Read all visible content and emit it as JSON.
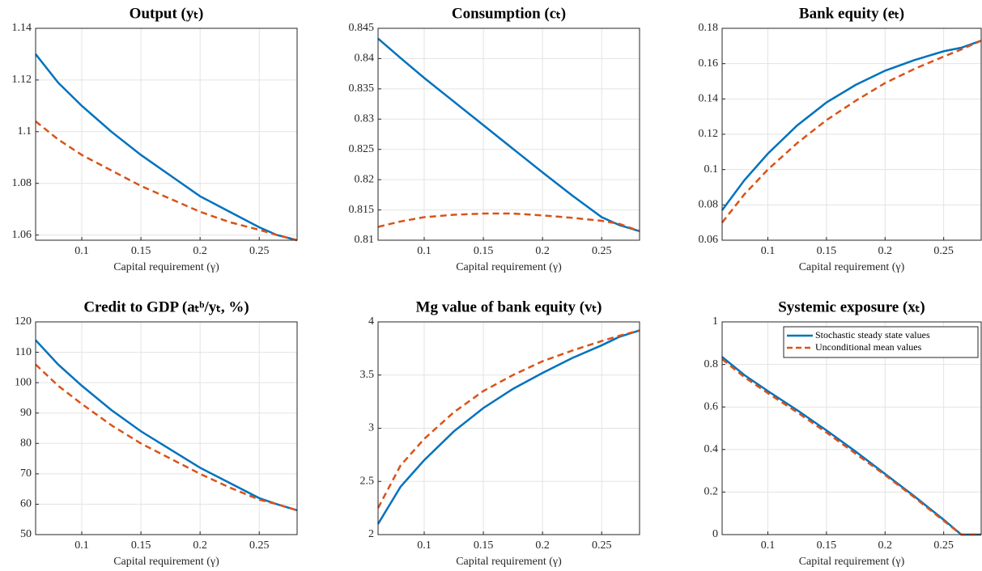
{
  "chart_data": [
    {
      "type": "line",
      "title": "Output (yₜ)",
      "xlabel": "Capital requirement (γ)",
      "x": [
        0.061,
        0.08,
        0.1,
        0.125,
        0.15,
        0.175,
        0.2,
        0.225,
        0.25,
        0.265,
        0.282
      ],
      "xlim": [
        0.061,
        0.282
      ],
      "xticks": [
        0.1,
        0.15,
        0.2,
        0.25
      ],
      "ylim": [
        1.058,
        1.14
      ],
      "yticks": [
        1.06,
        1.08,
        1.1,
        1.12,
        1.14
      ],
      "grid": true,
      "series": [
        {
          "color": "#0072bd",
          "dash": "solid",
          "values": [
            1.13,
            1.119,
            1.11,
            1.1,
            1.091,
            1.083,
            1.075,
            1.069,
            1.063,
            1.06,
            1.058
          ]
        },
        {
          "color": "#d95319",
          "dash": "dashed",
          "values": [
            1.104,
            1.097,
            1.091,
            1.085,
            1.079,
            1.074,
            1.069,
            1.065,
            1.062,
            1.06,
            1.058
          ]
        }
      ]
    },
    {
      "type": "line",
      "title": "Consumption (cₜ)",
      "xlabel": "Capital requirement (γ)",
      "x": [
        0.061,
        0.08,
        0.1,
        0.125,
        0.15,
        0.175,
        0.2,
        0.225,
        0.25,
        0.265,
        0.282
      ],
      "xlim": [
        0.061,
        0.282
      ],
      "xticks": [
        0.1,
        0.15,
        0.2,
        0.25
      ],
      "ylim": [
        0.81,
        0.845
      ],
      "yticks": [
        0.81,
        0.815,
        0.82,
        0.825,
        0.83,
        0.835,
        0.84,
        0.845
      ],
      "grid": true,
      "series": [
        {
          "color": "#0072bd",
          "dash": "solid",
          "values": [
            0.8433,
            0.8401,
            0.8368,
            0.8329,
            0.829,
            0.8251,
            0.8212,
            0.8174,
            0.8138,
            0.8125,
            0.8115
          ]
        },
        {
          "color": "#d95319",
          "dash": "dashed",
          "values": [
            0.8122,
            0.8131,
            0.8138,
            0.8142,
            0.8144,
            0.8144,
            0.8141,
            0.8137,
            0.8132,
            0.8127,
            0.8115
          ]
        }
      ]
    },
    {
      "type": "line",
      "title": "Bank equity (eₜ)",
      "xlabel": "Capital requirement (γ)",
      "x": [
        0.061,
        0.08,
        0.1,
        0.125,
        0.15,
        0.175,
        0.2,
        0.225,
        0.25,
        0.265,
        0.282
      ],
      "xlim": [
        0.061,
        0.282
      ],
      "xticks": [
        0.1,
        0.15,
        0.2,
        0.25
      ],
      "ylim": [
        0.06,
        0.18
      ],
      "yticks": [
        0.06,
        0.08,
        0.1,
        0.12,
        0.14,
        0.16,
        0.18
      ],
      "grid": true,
      "series": [
        {
          "color": "#0072bd",
          "dash": "solid",
          "values": [
            0.077,
            0.094,
            0.109,
            0.125,
            0.138,
            0.148,
            0.156,
            0.162,
            0.167,
            0.169,
            0.173
          ]
        },
        {
          "color": "#d95319",
          "dash": "dashed",
          "values": [
            0.07,
            0.086,
            0.1,
            0.115,
            0.128,
            0.139,
            0.149,
            0.157,
            0.164,
            0.168,
            0.173
          ]
        }
      ]
    },
    {
      "type": "line",
      "title": "Credit to GDP (aₜᵇ/yₜ, %)",
      "xlabel": "Capital requirement (γ)",
      "x": [
        0.061,
        0.08,
        0.1,
        0.125,
        0.15,
        0.175,
        0.2,
        0.225,
        0.25,
        0.265,
        0.282
      ],
      "xlim": [
        0.061,
        0.282
      ],
      "xticks": [
        0.1,
        0.15,
        0.2,
        0.25
      ],
      "ylim": [
        50,
        120
      ],
      "yticks": [
        50,
        60,
        70,
        80,
        90,
        100,
        110,
        120
      ],
      "grid": true,
      "series": [
        {
          "color": "#0072bd",
          "dash": "solid",
          "values": [
            114,
            106,
            99,
            91,
            84,
            78,
            72,
            67,
            62,
            60,
            58
          ]
        },
        {
          "color": "#d95319",
          "dash": "dashed",
          "values": [
            106,
            99,
            93,
            86,
            80,
            75,
            70,
            65.5,
            61.5,
            60,
            58
          ]
        }
      ]
    },
    {
      "type": "line",
      "title": "Mg value of bank equity (vₜ)",
      "xlabel": "Capital requirement (γ)",
      "x": [
        0.061,
        0.08,
        0.1,
        0.125,
        0.15,
        0.175,
        0.2,
        0.225,
        0.25,
        0.265,
        0.282
      ],
      "xlim": [
        0.061,
        0.282
      ],
      "xticks": [
        0.1,
        0.15,
        0.2,
        0.25
      ],
      "ylim": [
        2,
        4
      ],
      "yticks": [
        2,
        2.5,
        3,
        3.5,
        4
      ],
      "grid": true,
      "series": [
        {
          "color": "#0072bd",
          "dash": "solid",
          "values": [
            2.1,
            2.45,
            2.7,
            2.97,
            3.19,
            3.37,
            3.52,
            3.66,
            3.78,
            3.86,
            3.92
          ]
        },
        {
          "color": "#d95319",
          "dash": "dashed",
          "values": [
            2.25,
            2.65,
            2.9,
            3.15,
            3.35,
            3.5,
            3.63,
            3.73,
            3.82,
            3.87,
            3.92
          ]
        }
      ]
    },
    {
      "type": "line",
      "title": "Systemic exposure (xₜ)",
      "xlabel": "Capital requirement (γ)",
      "x": [
        0.061,
        0.08,
        0.1,
        0.125,
        0.15,
        0.175,
        0.2,
        0.225,
        0.25,
        0.265,
        0.282
      ],
      "xlim": [
        0.061,
        0.282
      ],
      "xticks": [
        0.1,
        0.15,
        0.2,
        0.25
      ],
      "ylim": [
        0,
        1
      ],
      "yticks": [
        0,
        0.2,
        0.4,
        0.6,
        0.8,
        1
      ],
      "grid": true,
      "legend": "northeast",
      "series": [
        {
          "name": "Stochastic steady state values",
          "color": "#0072bd",
          "dash": "solid",
          "values": [
            0.835,
            0.75,
            0.675,
            0.585,
            0.49,
            0.39,
            0.285,
            0.18,
            0.07,
            0,
            0
          ]
        },
        {
          "name": "Unconditional mean values",
          "color": "#d95319",
          "dash": "dashed",
          "values": [
            0.825,
            0.74,
            0.665,
            0.575,
            0.48,
            0.38,
            0.28,
            0.175,
            0.065,
            0,
            0
          ]
        }
      ]
    }
  ]
}
